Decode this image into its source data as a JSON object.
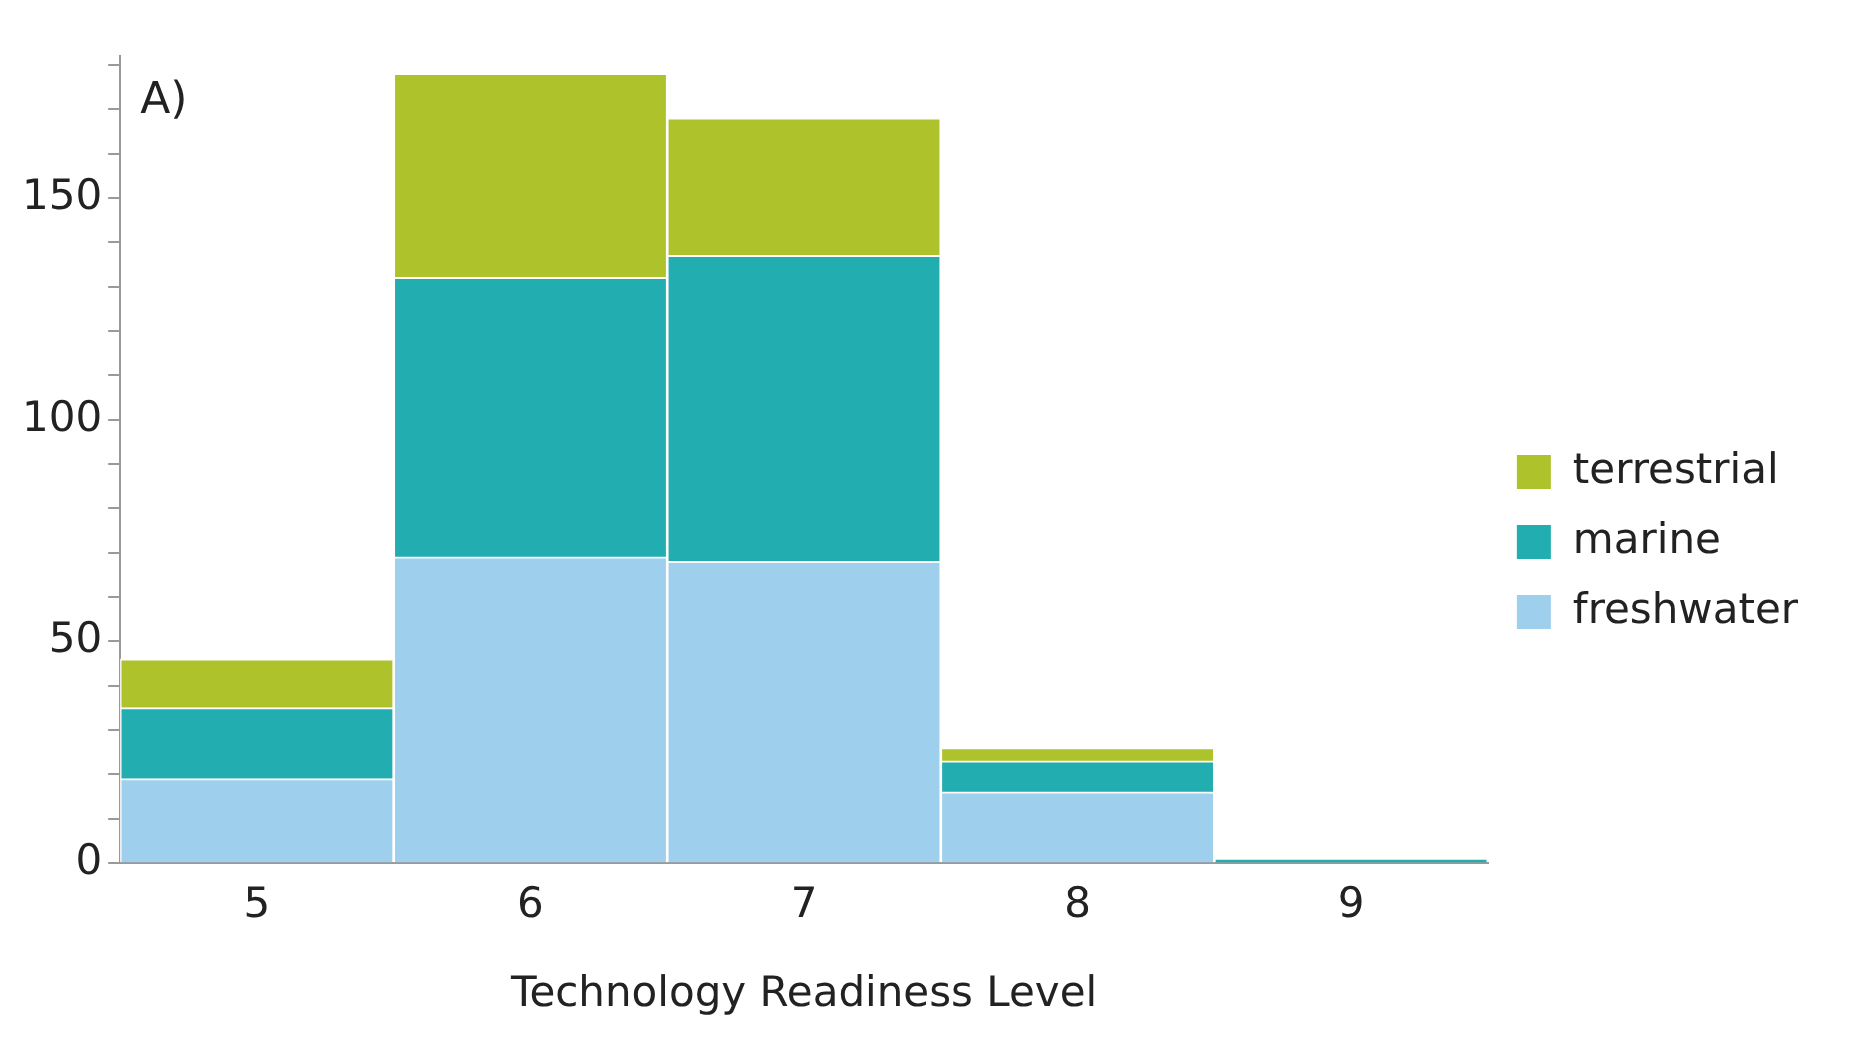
{
  "chart_data": {
    "type": "bar",
    "stacked": true,
    "xlabel": "Technology Readiness Level",
    "categories": [
      "5",
      "6",
      "7",
      "8",
      "9"
    ],
    "series": [
      {
        "name": "freshwater",
        "color": "#9ecfed",
        "values": [
          19,
          69,
          68,
          16,
          0
        ]
      },
      {
        "name": "marine",
        "color": "#22adb0",
        "values": [
          16,
          63,
          69,
          7,
          1
        ]
      },
      {
        "name": "terrestrial",
        "color": "#adc22b",
        "values": [
          11,
          46,
          31,
          3,
          0
        ]
      }
    ],
    "ylim": [
      0,
      182
    ],
    "yticks": [
      0,
      {
        "value": 10,
        "label": null
      },
      {
        "value": 20,
        "label": null
      },
      {
        "value": 30,
        "label": null
      },
      {
        "value": 40,
        "label": null
      },
      50,
      {
        "value": 60,
        "label": null
      },
      {
        "value": 70,
        "label": null
      },
      {
        "value": 80,
        "label": null
      },
      {
        "value": 90,
        "label": null
      },
      100,
      {
        "value": 110,
        "label": null
      },
      {
        "value": 120,
        "label": null
      },
      {
        "value": 130,
        "label": null
      },
      {
        "value": 140,
        "label": null
      },
      150,
      {
        "value": 160,
        "label": null
      },
      {
        "value": 170,
        "label": null
      },
      {
        "value": 180,
        "label": null
      }
    ],
    "grid": false,
    "legend": "right",
    "annotations": [
      "A)"
    ]
  }
}
